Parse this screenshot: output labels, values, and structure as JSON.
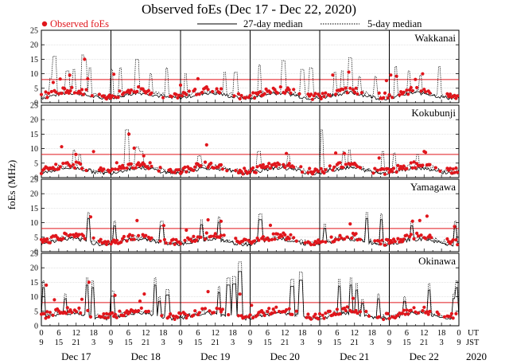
{
  "chart_data": {
    "type": "scatter",
    "title": "Observed foEs (Dec 17 - Dec 22, 2020)",
    "ylabel": "foEs (MHz)",
    "legend": {
      "observed": "Observed foEs",
      "median27": "27-day median",
      "median5": "5-day median"
    },
    "y_ticks": [
      "0",
      "5",
      "10",
      "15",
      "20",
      "25"
    ],
    "ylim": [
      0,
      25
    ],
    "threshold_mhz": 8,
    "x_hour_labels": [
      "0",
      "6",
      "12",
      "18",
      "0",
      "6",
      "12",
      "18",
      "0",
      "6",
      "12",
      "18",
      "0",
      "6",
      "12",
      "18",
      "0",
      "6",
      "12",
      "18",
      "0",
      "6",
      "12",
      "18",
      "0"
    ],
    "x_jst_labels": [
      "9",
      "15",
      "21",
      "3",
      "9",
      "15",
      "21",
      "3",
      "9",
      "15",
      "21",
      "3",
      "9",
      "15",
      "21",
      "3",
      "9",
      "15",
      "21",
      "3",
      "9",
      "15",
      "21",
      "3",
      "9"
    ],
    "timezone_labels": {
      "ut": "UT",
      "jst": "JST"
    },
    "days": [
      "Dec 17",
      "Dec 18",
      "Dec 19",
      "Dec 20",
      "Dec 21",
      "Dec 22"
    ],
    "year": "2020",
    "stations": [
      {
        "name": "Wakkanai",
        "baseline_mhz": 3.0,
        "spikes": [
          {
            "t": 0.55,
            "v": 8.5
          },
          {
            "t": 0.75,
            "v": 16.0
          },
          {
            "t": 1.5,
            "v": 11.0
          },
          {
            "t": 1.9,
            "v": 11.5
          },
          {
            "t": 2.35,
            "v": 16.5
          },
          {
            "t": 2.55,
            "v": 15.0
          },
          {
            "t": 2.8,
            "v": 12.0
          },
          {
            "t": 4.0,
            "v": 11.5
          },
          {
            "t": 4.55,
            "v": 12.0
          },
          {
            "t": 5.5,
            "v": 15.0
          },
          {
            "t": 6.3,
            "v": 10.0
          },
          {
            "t": 7.2,
            "v": 12.0
          },
          {
            "t": 8.3,
            "v": 10.0
          },
          {
            "t": 10.55,
            "v": 10.5
          },
          {
            "t": 11.15,
            "v": 10.5
          },
          {
            "t": 12.55,
            "v": 13.0
          },
          {
            "t": 13.9,
            "v": 14.5
          },
          {
            "t": 15.0,
            "v": 11.5
          },
          {
            "t": 15.5,
            "v": 12.0
          },
          {
            "t": 16.9,
            "v": 10.5
          },
          {
            "t": 17.3,
            "v": 11.0
          },
          {
            "t": 17.75,
            "v": 15.5
          },
          {
            "t": 18.3,
            "v": 9.0
          },
          {
            "t": 19.2,
            "v": 9.0
          },
          {
            "t": 20.4,
            "v": 12.5
          },
          {
            "t": 21.1,
            "v": 11.0
          },
          {
            "t": 21.8,
            "v": 9.5
          },
          {
            "t": 22.9,
            "v": 12.5
          }
        ]
      },
      {
        "name": "Kokubunji",
        "baseline_mhz": 3.0,
        "spikes": [
          {
            "t": 1.85,
            "v": 9.5
          },
          {
            "t": 2.2,
            "v": 8.0
          },
          {
            "t": 4.9,
            "v": 16.5
          },
          {
            "t": 5.5,
            "v": 10.5
          },
          {
            "t": 5.75,
            "v": 9.0
          },
          {
            "t": 9.1,
            "v": 7.5
          },
          {
            "t": 12.5,
            "v": 9.0
          },
          {
            "t": 14.2,
            "v": 8.0
          },
          {
            "t": 16.1,
            "v": 16.5
          },
          {
            "t": 17.35,
            "v": 9.0
          },
          {
            "t": 17.7,
            "v": 9.5
          },
          {
            "t": 19.6,
            "v": 9.0
          },
          {
            "t": 20.3,
            "v": 8.5
          },
          {
            "t": 21.6,
            "v": 8.0
          }
        ]
      },
      {
        "name": "Yamagawa",
        "baseline_mhz": 4.0,
        "spikes": [
          {
            "t": 2.7,
            "v": 13.5
          },
          {
            "t": 4.2,
            "v": 10.5
          },
          {
            "t": 6.9,
            "v": 10.5
          },
          {
            "t": 9.2,
            "v": 11.0
          },
          {
            "t": 10.2,
            "v": 12.0
          },
          {
            "t": 12.6,
            "v": 13.0
          },
          {
            "t": 16.3,
            "v": 9.5
          },
          {
            "t": 18.7,
            "v": 13.5
          },
          {
            "t": 19.55,
            "v": 13.0
          },
          {
            "t": 21.3,
            "v": 10.5
          },
          {
            "t": 23.8,
            "v": 10.5
          }
        ]
      },
      {
        "name": "Okinawa",
        "baseline_mhz": 4.0,
        "spikes": [
          {
            "t": 0.15,
            "v": 15.5
          },
          {
            "t": 1.4,
            "v": 11.0
          },
          {
            "t": 2.6,
            "v": 16.5
          },
          {
            "t": 2.95,
            "v": 15.5
          },
          {
            "t": 4.1,
            "v": 12.0
          },
          {
            "t": 6.55,
            "v": 16.5
          },
          {
            "t": 6.8,
            "v": 10.0
          },
          {
            "t": 7.25,
            "v": 12.5
          },
          {
            "t": 10.2,
            "v": 13.5
          },
          {
            "t": 10.75,
            "v": 16.5
          },
          {
            "t": 11.1,
            "v": 17.0
          },
          {
            "t": 11.4,
            "v": 22.0
          },
          {
            "t": 14.4,
            "v": 16.0
          },
          {
            "t": 14.9,
            "v": 18.5
          },
          {
            "t": 17.1,
            "v": 16.0
          },
          {
            "t": 17.8,
            "v": 16.5
          },
          {
            "t": 18.1,
            "v": 14.5
          },
          {
            "t": 18.45,
            "v": 9.0
          },
          {
            "t": 19.4,
            "v": 11.0
          },
          {
            "t": 20.9,
            "v": 10.0
          },
          {
            "t": 22.3,
            "v": 14.5
          },
          {
            "t": 23.7,
            "v": 11.0
          },
          {
            "t": 23.9,
            "v": 15.5
          }
        ]
      }
    ]
  }
}
